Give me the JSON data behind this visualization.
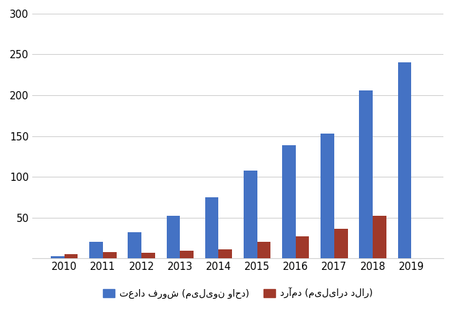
{
  "years": [
    "2010",
    "2011",
    "2012",
    "2013",
    "2014",
    "2015",
    "2016",
    "2017",
    "2018",
    "2019"
  ],
  "sales_units": [
    3,
    20,
    32,
    52,
    75,
    108,
    139,
    153,
    206,
    240
  ],
  "revenue": [
    5,
    8,
    7,
    9,
    11,
    20,
    27,
    36,
    52,
    0
  ],
  "bar_color_blue": "#4472C4",
  "bar_color_red": "#A0392A",
  "legend_blue": "تعداد فروش (میلیون واحد)",
  "legend_red": "درآمد (میلیارد دلار)",
  "ylim": [
    0,
    300
  ],
  "yticks": [
    0,
    50,
    100,
    150,
    200,
    250,
    300
  ],
  "background_color": "#ffffff",
  "bar_width": 0.35,
  "grid_color": "#d0d0d0"
}
